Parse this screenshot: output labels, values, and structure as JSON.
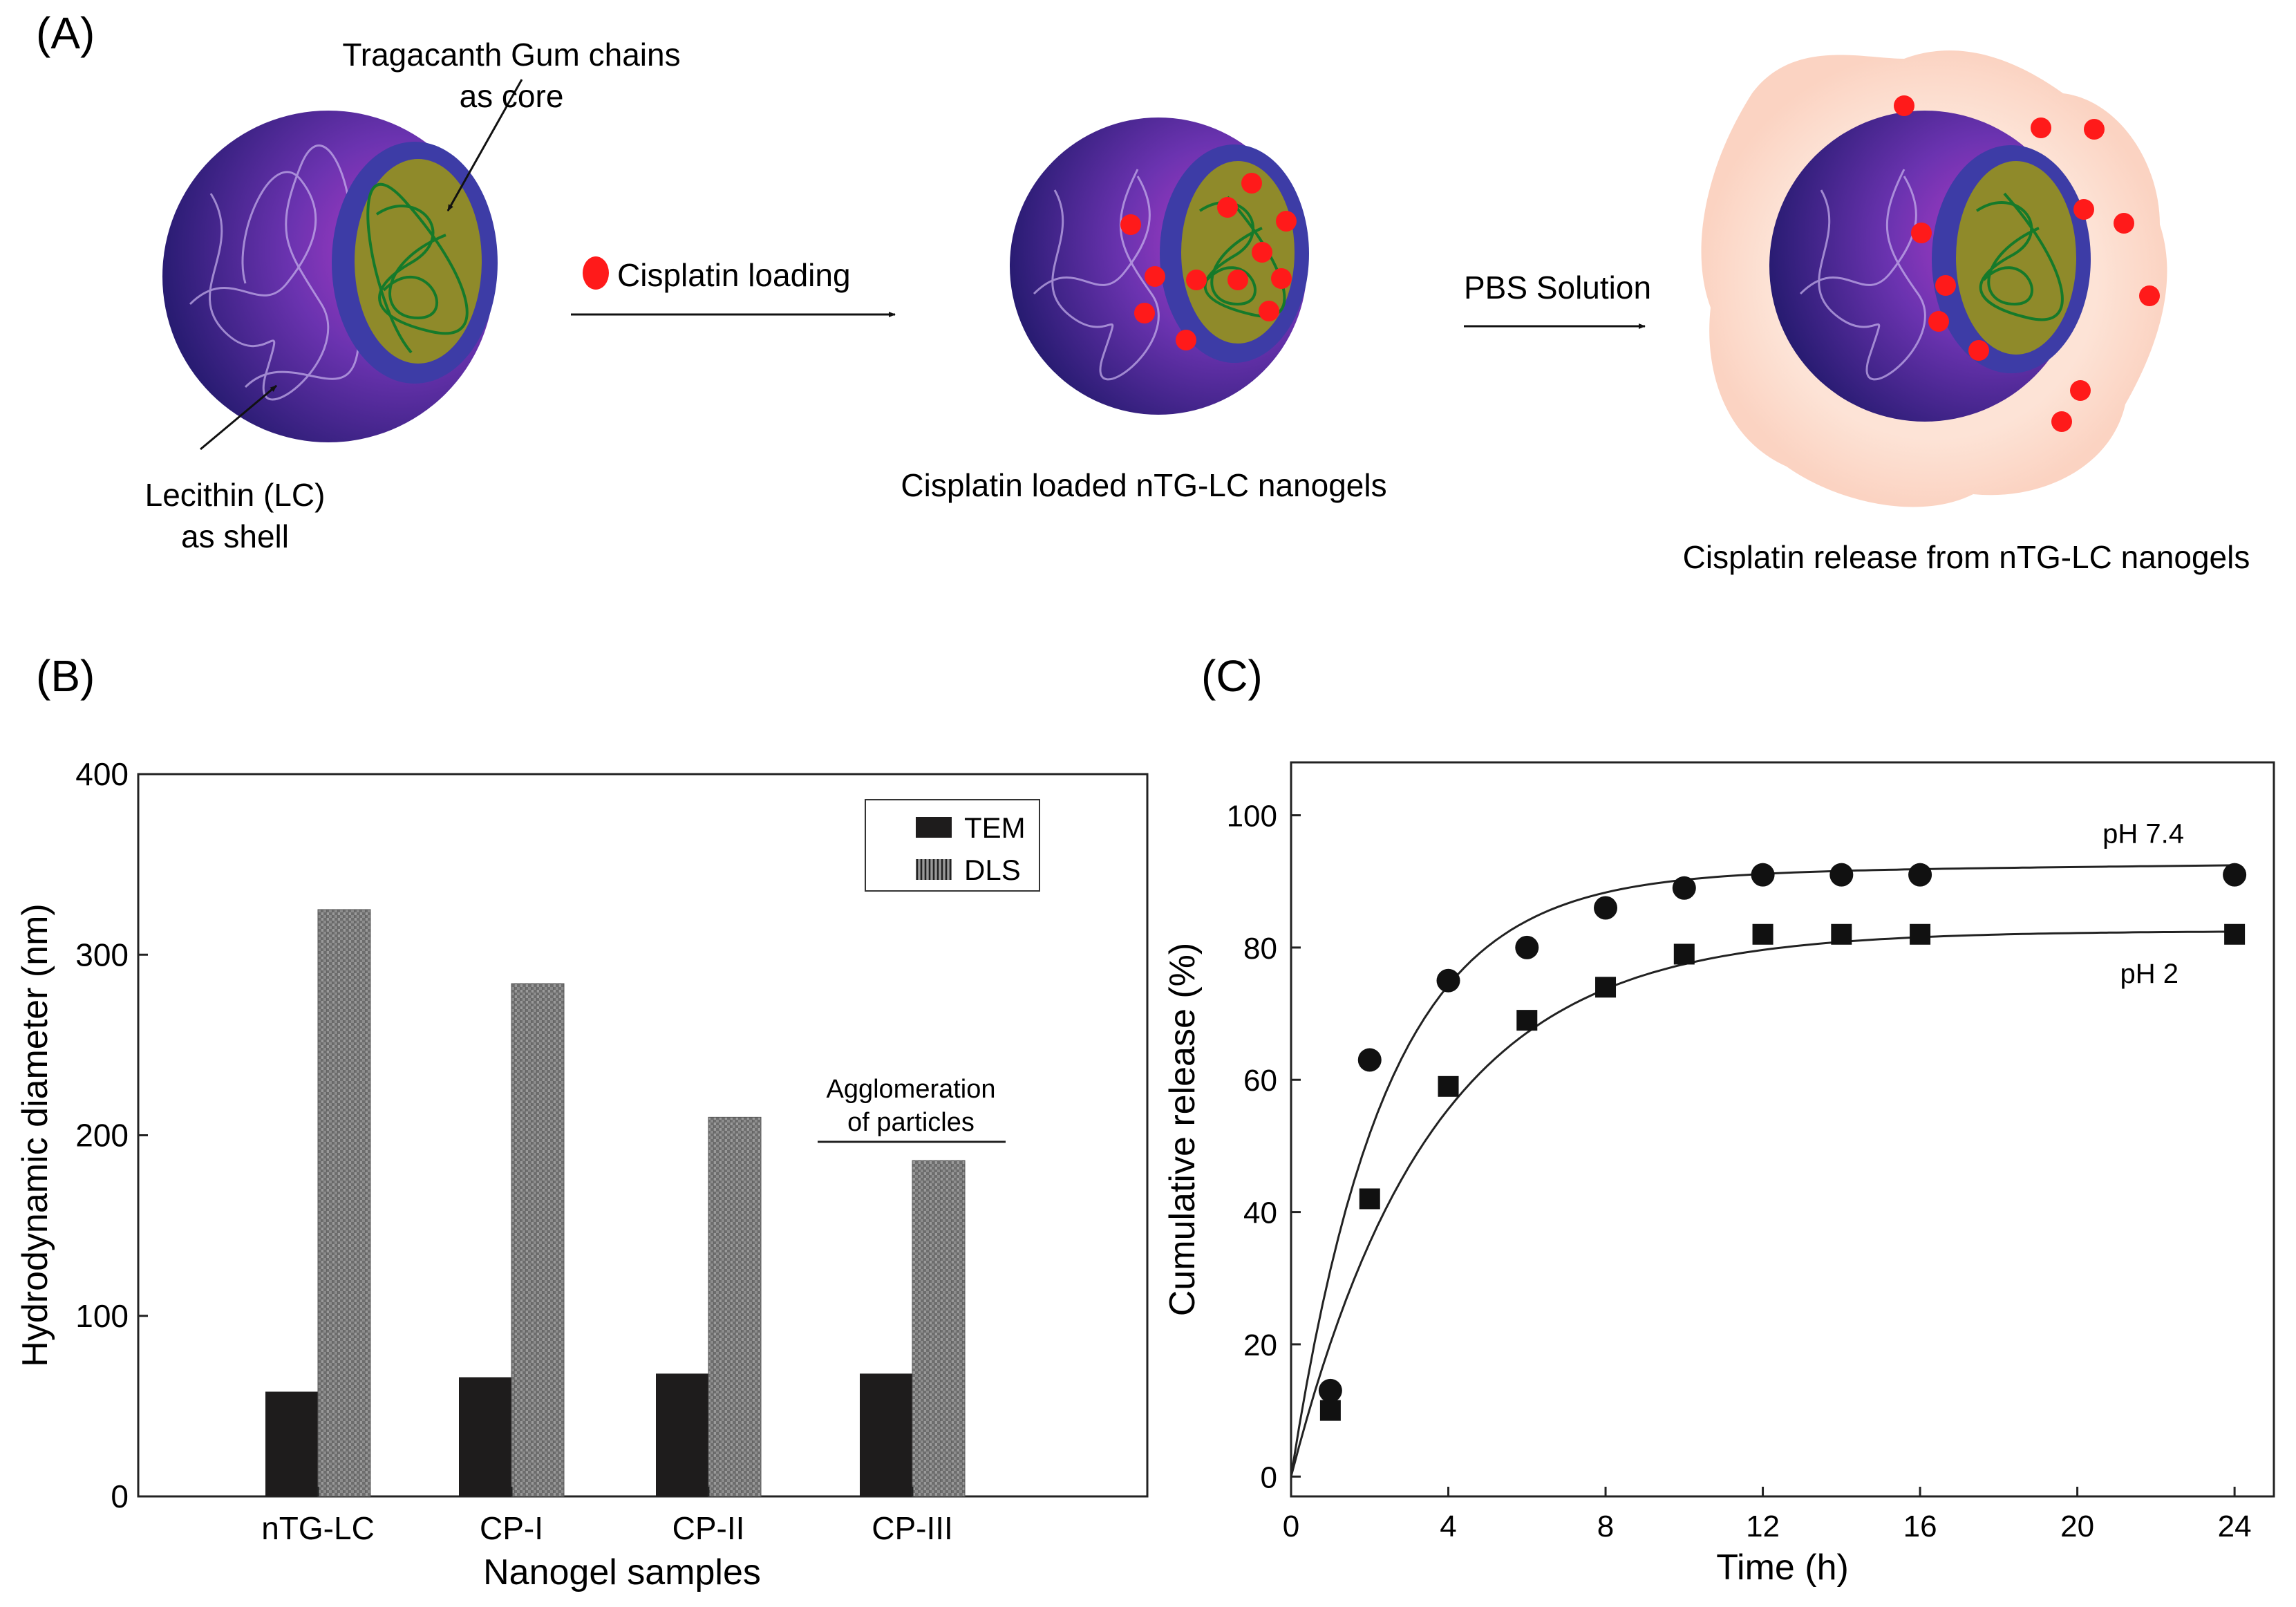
{
  "panel_a": {
    "label": "(A)",
    "core_label_line1": "Tragacanth Gum chains",
    "core_label_line2": "as core",
    "shell_label_line1": "Lecithin (LC)",
    "shell_label_line2": "as shell",
    "loading_label": "Cisplatin loading",
    "pbs_label": "PBS Solution",
    "loaded_caption": "Cisplatin loaded nTG-LC nanogels",
    "release_caption": "Cisplatin release from nTG-LC nanogels",
    "colors": {
      "drug": "#ff1a1a",
      "shell": "#5a2a9e",
      "core": "#8f8a2a",
      "halo": "#fde1d4"
    }
  },
  "panel_b_label": "(B)",
  "panel_c_label": "(C)",
  "chart_data": [
    {
      "type": "bar",
      "categories": [
        "nTG-LC",
        "CP-I",
        "CP-II",
        "CP-III"
      ],
      "series": [
        {
          "name": "TEM",
          "values": [
            58,
            66,
            68,
            68
          ],
          "color": "#1e1c1c"
        },
        {
          "name": "DLS",
          "values": [
            325,
            284,
            210,
            186
          ],
          "color": "#8a8a8a"
        }
      ],
      "xlabel": "Nanogel samples",
      "ylabel": "Hydrodynamic diameter (nm)",
      "ylim": [
        0,
        400
      ],
      "yticks": [
        0,
        100,
        200,
        300,
        400
      ],
      "legend": "top-right",
      "annotation": {
        "line1": "Agglomeration",
        "line2": "of particles"
      }
    },
    {
      "type": "scatter",
      "xlabel": "Time (h)",
      "ylabel": "Cumulative release (%)",
      "xlim": [
        0,
        25
      ],
      "ylim": [
        -3,
        108
      ],
      "xticks": [
        0,
        4,
        8,
        12,
        16,
        20,
        24
      ],
      "yticks": [
        0,
        20,
        40,
        60,
        80,
        100
      ],
      "series": [
        {
          "name": "pH 7.4",
          "marker": "circle",
          "x": [
            1,
            2,
            4,
            6,
            8,
            10,
            12,
            14,
            16,
            24
          ],
          "y": [
            13,
            63,
            75,
            80,
            86,
            89,
            91,
            91,
            91,
            91
          ],
          "fit": {
            "plateau": 91,
            "k": 0.42,
            "slope": 0.06
          }
        },
        {
          "name": "pH 2",
          "marker": "square",
          "x": [
            1,
            2,
            4,
            6,
            8,
            10,
            12,
            14,
            16,
            24
          ],
          "y": [
            10,
            42,
            59,
            69,
            74,
            79,
            82,
            82,
            82,
            82
          ],
          "fit": {
            "plateau": 82.5,
            "k": 0.28,
            "slope": 0
          }
        }
      ]
    }
  ]
}
